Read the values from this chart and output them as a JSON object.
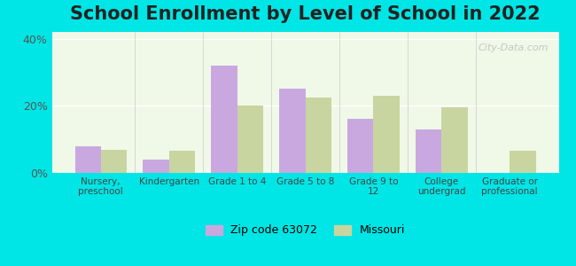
{
  "title": "School Enrollment by Level of School in 2022",
  "categories": [
    "Nursery,\npreschool",
    "Kindergarten",
    "Grade 1 to 4",
    "Grade 5 to 8",
    "Grade 9 to\n12",
    "College\nundergrad",
    "Graduate or\nprofessional"
  ],
  "zip_values": [
    8.0,
    4.0,
    32.0,
    25.0,
    16.0,
    13.0,
    0.0
  ],
  "mo_values": [
    7.0,
    6.5,
    20.0,
    22.5,
    23.0,
    19.5,
    6.5
  ],
  "zip_color": "#c9a8e0",
  "mo_color": "#c8d5a0",
  "background_outer": "#00e5e5",
  "background_inner_top": "#f0f8e8",
  "background_inner_bottom": "#e8f8f0",
  "ylim": [
    0,
    42
  ],
  "yticks": [
    0,
    20,
    40
  ],
  "ytick_labels": [
    "0%",
    "20%",
    "40%"
  ],
  "legend_zip_label": "Zip code 63072",
  "legend_mo_label": "Missouri",
  "watermark": "City-Data.com",
  "title_fontsize": 15,
  "bar_width": 0.38
}
